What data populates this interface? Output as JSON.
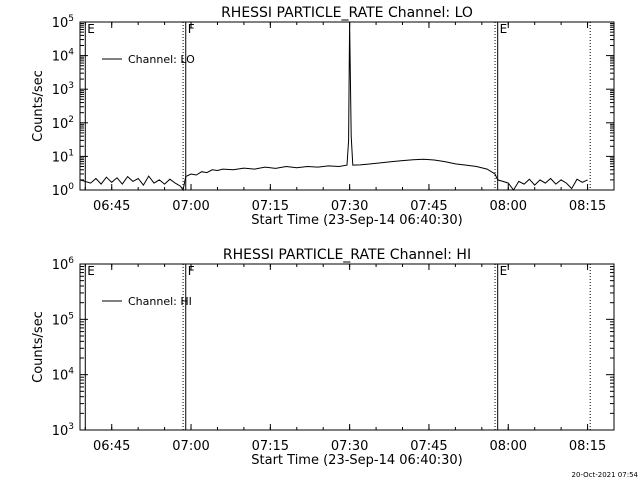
{
  "chart_data": [
    {
      "type": "line",
      "title": "RHESSI PARTICLE_RATE Channel: LO",
      "xlabel": "Start Time (23-Sep-14 06:40:30)",
      "ylabel": "Counts/sec",
      "yscale": "log",
      "ylim": [
        1,
        100000
      ],
      "xlim": [
        "06:39",
        "08:20"
      ],
      "xticks": [
        "06:45",
        "07:00",
        "07:15",
        "07:30",
        "07:45",
        "08:00",
        "08:15"
      ],
      "yticks": [
        {
          "base": "10",
          "exp": "0",
          "value": 1
        },
        {
          "base": "10",
          "exp": "1",
          "value": 10
        },
        {
          "base": "10",
          "exp": "2",
          "value": 100
        },
        {
          "base": "10",
          "exp": "3",
          "value": 1000
        },
        {
          "base": "10",
          "exp": "4",
          "value": 10000
        },
        {
          "base": "10",
          "exp": "5",
          "value": 100000
        }
      ],
      "legend": {
        "label": "Channel: LO",
        "placement": "top-left"
      },
      "markers": [
        {
          "label": "F",
          "time": "06:59",
          "style": "solid"
        },
        {
          "label": "E",
          "time": "07:58",
          "style": "solid"
        },
        {
          "label": "E",
          "time": "06:40",
          "style": "solid"
        },
        {
          "time": "06:58.5",
          "style": "dotted"
        },
        {
          "time": "07:57.5",
          "style": "dotted"
        },
        {
          "time": "08:15.5",
          "style": "dotted"
        }
      ],
      "series": [
        {
          "points": [
            [
              "06:39",
              2.0
            ],
            [
              "06:41",
              1.6
            ],
            [
              "06:42",
              2.2
            ],
            [
              "06:43",
              1.5
            ],
            [
              "06:44",
              2.4
            ],
            [
              "06:45",
              1.7
            ],
            [
              "06:46",
              2.3
            ],
            [
              "06:47",
              1.5
            ],
            [
              "06:48",
              2.5
            ],
            [
              "06:49",
              1.8
            ],
            [
              "06:50",
              2.2
            ],
            [
              "06:51",
              1.4
            ],
            [
              "06:52",
              2.6
            ],
            [
              "06:53",
              1.6
            ],
            [
              "06:54",
              2.0
            ],
            [
              "06:55",
              1.5
            ],
            [
              "06:56",
              2.1
            ],
            [
              "06:57",
              1.6
            ],
            [
              "06:58",
              1.3
            ],
            [
              "06:58.5",
              1.0
            ],
            [
              "06:59",
              2.5
            ],
            [
              "07:00",
              3.0
            ],
            [
              "07:01",
              2.8
            ],
            [
              "07:02",
              3.5
            ],
            [
              "07:03",
              3.3
            ],
            [
              "07:04",
              4.0
            ],
            [
              "07:05",
              3.8
            ],
            [
              "07:06",
              4.2
            ],
            [
              "07:08",
              4.0
            ],
            [
              "07:10",
              4.5
            ],
            [
              "07:12",
              4.2
            ],
            [
              "07:14",
              4.8
            ],
            [
              "07:16",
              4.4
            ],
            [
              "07:18",
              5.0
            ],
            [
              "07:20",
              4.6
            ],
            [
              "07:22",
              5.0
            ],
            [
              "07:24",
              4.8
            ],
            [
              "07:26",
              5.2
            ],
            [
              "07:28",
              5.0
            ],
            [
              "07:29.5",
              5.5
            ],
            [
              "07:29.8",
              30
            ],
            [
              "07:30",
              100000
            ],
            [
              "07:30.3",
              40
            ],
            [
              "07:30.6",
              5.5
            ],
            [
              "07:32",
              5.6
            ],
            [
              "07:34",
              6.0
            ],
            [
              "07:36",
              6.5
            ],
            [
              "07:38",
              7.0
            ],
            [
              "07:40",
              7.5
            ],
            [
              "07:42",
              8.0
            ],
            [
              "07:44",
              8.2
            ],
            [
              "07:46",
              7.8
            ],
            [
              "07:48",
              7.0
            ],
            [
              "07:50",
              6.0
            ],
            [
              "07:52",
              5.5
            ],
            [
              "07:54",
              5.0
            ],
            [
              "07:56",
              4.2
            ],
            [
              "07:57.5",
              3.0
            ],
            [
              "07:58",
              2.0
            ],
            [
              "07:59",
              1.8
            ],
            [
              "08:00",
              1.6
            ],
            [
              "08:01",
              1.0
            ],
            [
              "08:02",
              1.8
            ],
            [
              "08:03",
              1.5
            ],
            [
              "08:04",
              2.1
            ],
            [
              "08:05",
              1.4
            ],
            [
              "08:06",
              2.0
            ],
            [
              "08:07",
              1.6
            ],
            [
              "08:08",
              2.2
            ],
            [
              "08:09",
              1.5
            ],
            [
              "08:10",
              2.0
            ],
            [
              "08:11",
              1.6
            ],
            [
              "08:12",
              1.1
            ],
            [
              "08:13",
              2.1
            ],
            [
              "08:14",
              1.7
            ],
            [
              "08:15",
              2.0
            ]
          ]
        }
      ]
    },
    {
      "type": "line",
      "title": "RHESSI PARTICLE_RATE Channel: HI",
      "xlabel": "Start Time (23-Sep-14 06:40:30)",
      "ylabel": "Counts/sec",
      "yscale": "log",
      "ylim": [
        1000,
        1000000
      ],
      "xlim": [
        "06:39",
        "08:20"
      ],
      "xticks": [
        "06:45",
        "07:00",
        "07:15",
        "07:30",
        "07:45",
        "08:00",
        "08:15"
      ],
      "yticks": [
        {
          "base": "10",
          "exp": "3",
          "value": 1000
        },
        {
          "base": "10",
          "exp": "4",
          "value": 10000
        },
        {
          "base": "10",
          "exp": "5",
          "value": 100000
        },
        {
          "base": "10",
          "exp": "6",
          "value": 1000000
        }
      ],
      "legend": {
        "label": "Channel: HI",
        "placement": "top-left"
      },
      "markers": [
        {
          "label": "F",
          "time": "06:59",
          "style": "solid"
        },
        {
          "label": "E",
          "time": "07:58",
          "style": "solid"
        },
        {
          "label": "E",
          "time": "06:40",
          "style": "solid"
        },
        {
          "time": "06:58.5",
          "style": "dotted"
        },
        {
          "time": "07:57.5",
          "style": "dotted"
        },
        {
          "time": "08:15.5",
          "style": "dotted"
        }
      ],
      "series": []
    }
  ],
  "footer": {
    "timestamp": "20-Oct-2021 07:54"
  }
}
